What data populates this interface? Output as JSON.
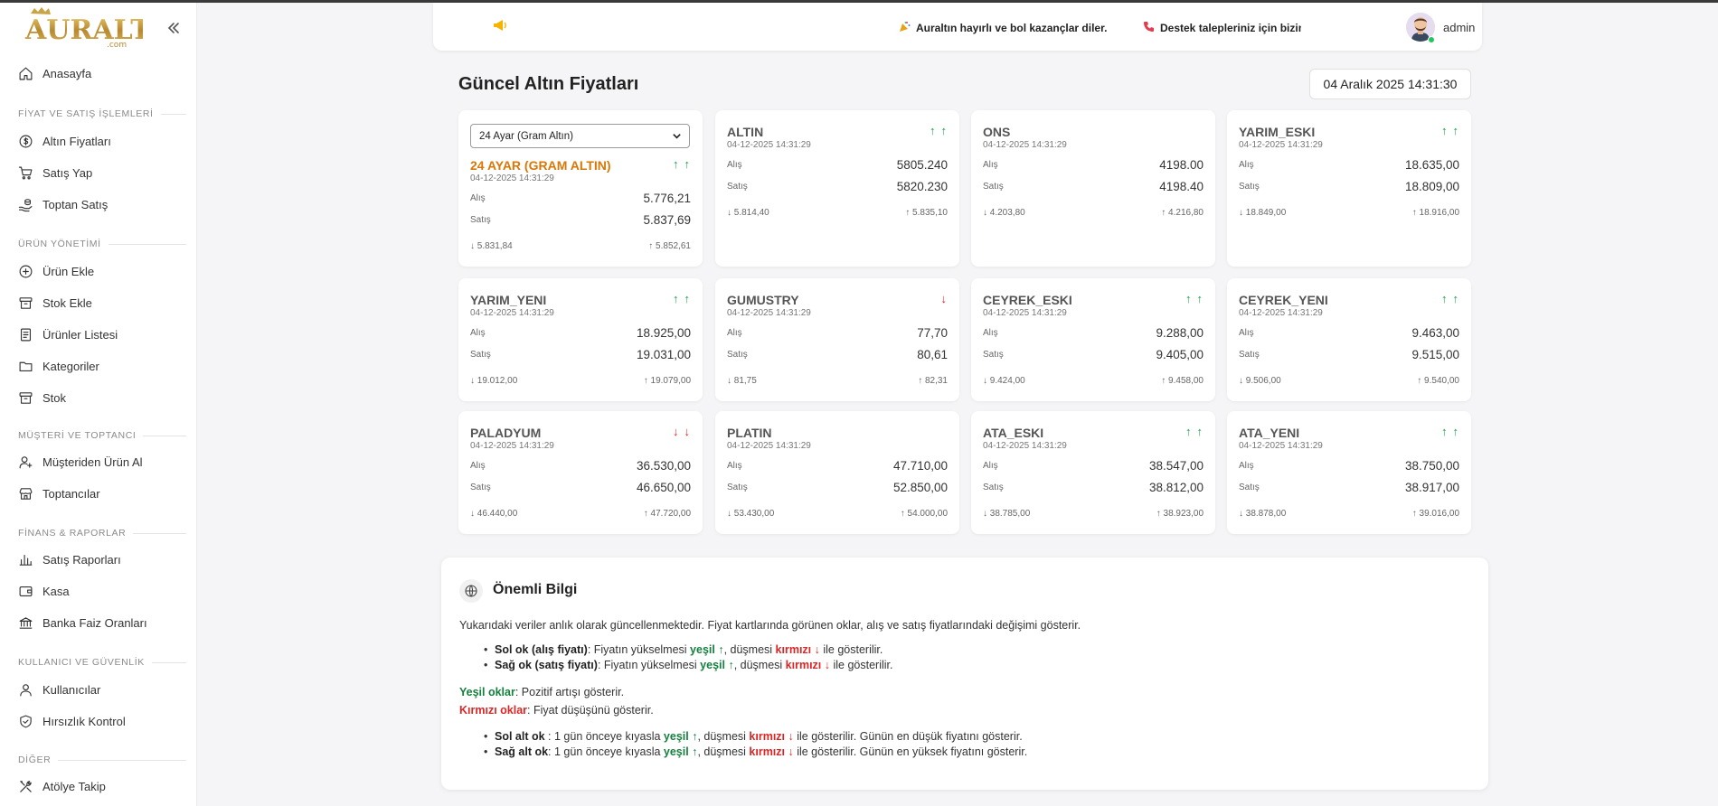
{
  "brand": {
    "logo_text": "AURALTIN",
    "logo_sub": ".com"
  },
  "sidebar": {
    "home": "Anasayfa",
    "sections": [
      {
        "title": "FİYAT VE SATIŞ İŞLEMLERİ",
        "items": [
          "Altın Fiyatları",
          "Satış Yap",
          "Toptan Satış"
        ]
      },
      {
        "title": "ÜRÜN YÖNETİMİ",
        "items": [
          "Ürün Ekle",
          "Stok Ekle",
          "Ürünler Listesi",
          "Kategoriler",
          "Stok"
        ]
      },
      {
        "title": "MÜŞTERİ VE TOPTANCI",
        "items": [
          "Müşteriden Ürün Al",
          "Toptancılar"
        ]
      },
      {
        "title": "FİNANS & RAPORLAR",
        "items": [
          "Satış Raporları",
          "Kasa",
          "Banka Faiz Oranları"
        ]
      },
      {
        "title": "KULLANICI VE GÜVENLİK",
        "items": [
          "Kullanıcılar",
          "Hırsızlık Kontrol"
        ]
      },
      {
        "title": "DİĞER",
        "items": [
          "Atölye Takip"
        ]
      }
    ]
  },
  "topbar": {
    "msg1": "Auraltın hayırlı ve bol kazançlar diler.",
    "msg2": "Destek talepleriniz için bizimle i",
    "user": "admin"
  },
  "header": {
    "title": "Güncel Altın Fiyatları",
    "datetime": "04 Aralık 2025 14:31:30"
  },
  "labels": {
    "buy": "Alış",
    "sell": "Satış"
  },
  "cards": [
    {
      "select": "24 Ayar (Gram Altın)",
      "name": "24 AYAR (GRAM ALTIN)",
      "time": "04-12-2025 14:31:29",
      "buy": "5.776,21",
      "sell": "5.837,69",
      "low": "↓ 5.831,84",
      "high": "↑ 5.852,61",
      "arrows": [
        "up",
        "up"
      ]
    },
    {
      "name": "ALTIN",
      "time": "04-12-2025 14:31:29",
      "buy": "5805.240",
      "sell": "5820.230",
      "low": "↓ 5.814,40",
      "high": "↑ 5.835,10",
      "arrows": [
        "up",
        "up"
      ]
    },
    {
      "name": "ONS",
      "time": "04-12-2025 14:31:29",
      "buy": "4198.00",
      "sell": "4198.40",
      "low": "↓ 4.203,80",
      "high": "↑ 4.216,80",
      "arrows": []
    },
    {
      "name": "YARIM_ESKI",
      "time": "04-12-2025 14:31:29",
      "buy": "18.635,00",
      "sell": "18.809,00",
      "low": "↓ 18.849,00",
      "high": "↑ 18.916,00",
      "arrows": [
        "up",
        "up"
      ]
    },
    {
      "name": "YARIM_YENI",
      "time": "04-12-2025 14:31:29",
      "buy": "18.925,00",
      "sell": "19.031,00",
      "low": "↓ 19.012,00",
      "high": "↑ 19.079,00",
      "arrows": [
        "up",
        "up"
      ]
    },
    {
      "name": "GUMUSTRY",
      "time": "04-12-2025 14:31:29",
      "buy": "77,70",
      "sell": "80,61",
      "low": "↓ 81,75",
      "high": "↑ 82,31",
      "arrows": [
        "down"
      ]
    },
    {
      "name": "CEYREK_ESKI",
      "time": "04-12-2025 14:31:29",
      "buy": "9.288,00",
      "sell": "9.405,00",
      "low": "↓ 9.424,00",
      "high": "↑ 9.458,00",
      "arrows": [
        "up",
        "up"
      ]
    },
    {
      "name": "CEYREK_YENI",
      "time": "04-12-2025 14:31:29",
      "buy": "9.463,00",
      "sell": "9.515,00",
      "low": "↓ 9.506,00",
      "high": "↑ 9.540,00",
      "arrows": [
        "up",
        "up"
      ]
    },
    {
      "name": "PALADYUM",
      "time": "04-12-2025 14:31:29",
      "buy": "36.530,00",
      "sell": "46.650,00",
      "low": "↓ 46.440,00",
      "high": "↑ 47.720,00",
      "arrows": [
        "down",
        "down"
      ]
    },
    {
      "name": "PLATIN",
      "time": "04-12-2025 14:31:29",
      "buy": "47.710,00",
      "sell": "52.850,00",
      "low": "↓ 53.430,00",
      "high": "↑ 54.000,00",
      "arrows": []
    },
    {
      "name": "ATA_ESKI",
      "time": "04-12-2025 14:31:29",
      "buy": "38.547,00",
      "sell": "38.812,00",
      "low": "↓ 38.785,00",
      "high": "↑ 38.923,00",
      "arrows": [
        "up",
        "up"
      ]
    },
    {
      "name": "ATA_YENI",
      "time": "04-12-2025 14:31:29",
      "buy": "38.750,00",
      "sell": "38.917,00",
      "low": "↓ 38.878,00",
      "high": "↑ 39.016,00",
      "arrows": [
        "up",
        "up"
      ]
    }
  ],
  "info": {
    "title": "Önemli Bilgi",
    "intro": "Yukarıdaki veriler anlık olarak güncellenmektedir. Fiyat kartlarında görünen oklar, alış ve satış fiyatlarındaki değişimi gösterir.",
    "b1_label": "Sol ok (alış fiyatı)",
    "b2_label": "Sağ ok (satış fiyatı)",
    "rise_text": ": Fiyatın yükselmesi ",
    "green_word": "yeşil ↑",
    "fall_text": ", düşmesi ",
    "red_word": "kırmızı ↓",
    "shown_text": " ile gösterilir.",
    "green_label": "Yeşil oklar",
    "green_desc": ": Pozitif artışı gösterir.",
    "red_label": "Kırmızı oklar",
    "red_desc": ": Fiyat düşüşünü gösterir.",
    "b3_label": "Sol alt ok",
    "b4_label": "Sağ alt ok",
    "compare_text": " : 1 gün önceye kıyasla ",
    "compare_text2": ": 1 gün önceye kıyasla ",
    "low_tail": " ile gösterilir. Günün en düşük fiyatını gösterir.",
    "high_tail": " ile gösterilir. Günün en yüksek fiyatını gösterir."
  }
}
